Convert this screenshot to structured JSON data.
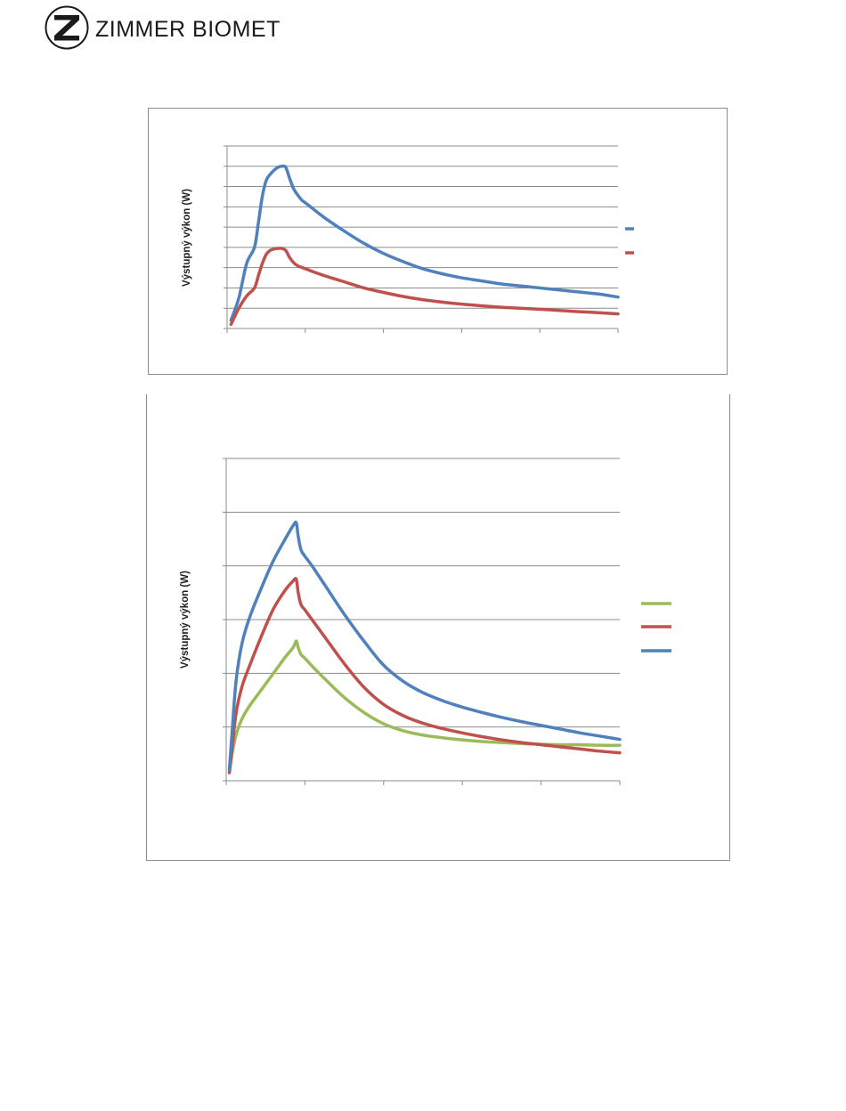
{
  "brand": {
    "name": "ZIMMER BIOMET"
  },
  "colors": {
    "blue": "#4f81bd",
    "red": "#c0504d",
    "green": "#9bbb59",
    "grid": "#8c8c8c"
  },
  "chart_data": [
    {
      "type": "line",
      "title": "",
      "xlabel": "",
      "ylabel": "Výstupný výkon (W)",
      "xlim": [
        0,
        100
      ],
      "ylim": [
        0,
        9
      ],
      "grid": true,
      "legend_position": "right",
      "series": [
        {
          "color": "#4f81bd",
          "x": [
            1,
            3,
            5,
            7,
            8,
            9,
            10,
            11,
            12,
            13,
            14,
            15,
            16,
            17,
            18,
            19,
            20,
            22,
            25,
            30,
            35,
            40,
            45,
            50,
            55,
            60,
            65,
            70,
            75,
            80,
            85,
            90,
            95,
            100
          ],
          "y": [
            0.4,
            1.5,
            3.2,
            4.0,
            5.2,
            6.5,
            7.3,
            7.6,
            7.8,
            7.95,
            8.0,
            7.95,
            7.4,
            6.9,
            6.6,
            6.35,
            6.2,
            5.9,
            5.45,
            4.8,
            4.2,
            3.7,
            3.3,
            2.95,
            2.7,
            2.5,
            2.35,
            2.2,
            2.1,
            2.0,
            1.9,
            1.8,
            1.7,
            1.55
          ]
        },
        {
          "color": "#c0504d",
          "x": [
            1,
            3,
            5,
            7,
            8,
            9,
            10,
            11,
            12,
            13,
            14,
            15,
            16,
            17,
            18,
            19,
            20,
            22,
            25,
            30,
            35,
            40,
            45,
            50,
            55,
            60,
            65,
            70,
            75,
            80,
            85,
            90,
            95,
            100
          ],
          "y": [
            0.2,
            1.0,
            1.6,
            2.0,
            2.6,
            3.2,
            3.65,
            3.85,
            3.92,
            3.95,
            3.95,
            3.85,
            3.5,
            3.25,
            3.1,
            3.02,
            2.95,
            2.8,
            2.6,
            2.3,
            2.0,
            1.78,
            1.58,
            1.42,
            1.3,
            1.2,
            1.12,
            1.05,
            1.0,
            0.95,
            0.89,
            0.83,
            0.78,
            0.72
          ]
        }
      ]
    },
    {
      "type": "line",
      "title": "",
      "xlabel": "",
      "ylabel": "Výstupný výkon (W)",
      "xlim": [
        0,
        100
      ],
      "ylim": [
        0,
        6
      ],
      "grid": true,
      "legend_position": "right",
      "series": [
        {
          "color": "#9bbb59",
          "x": [
            0.8,
            1.5,
            2.5,
            4,
            6,
            9,
            12,
            15,
            17,
            17.8,
            18.3,
            19,
            20,
            22,
            25,
            30,
            35,
            40,
            45,
            50,
            55,
            60,
            65,
            70,
            75,
            80,
            85,
            90,
            95,
            100
          ],
          "y": [
            0.15,
            0.5,
            0.85,
            1.15,
            1.4,
            1.7,
            2.0,
            2.3,
            2.48,
            2.6,
            2.48,
            2.35,
            2.28,
            2.12,
            1.9,
            1.55,
            1.27,
            1.06,
            0.93,
            0.85,
            0.8,
            0.76,
            0.73,
            0.71,
            0.69,
            0.68,
            0.67,
            0.67,
            0.66,
            0.66
          ]
        },
        {
          "color": "#c0504d",
          "x": [
            0.8,
            1.5,
            2.5,
            4,
            6,
            9,
            12,
            15,
            17,
            17.8,
            18.3,
            19,
            20,
            22,
            25,
            30,
            35,
            40,
            45,
            50,
            55,
            60,
            65,
            70,
            75,
            80,
            85,
            90,
            95,
            100
          ],
          "y": [
            0.15,
            0.6,
            1.25,
            1.75,
            2.15,
            2.7,
            3.2,
            3.55,
            3.72,
            3.75,
            3.5,
            3.28,
            3.18,
            2.98,
            2.68,
            2.18,
            1.74,
            1.42,
            1.21,
            1.07,
            0.97,
            0.89,
            0.82,
            0.76,
            0.71,
            0.67,
            0.63,
            0.59,
            0.55,
            0.52
          ]
        },
        {
          "color": "#4f81bd",
          "x": [
            0.8,
            1.5,
            2.5,
            4,
            6,
            9,
            12,
            15,
            17,
            17.8,
            18.3,
            19,
            20,
            22,
            25,
            30,
            35,
            40,
            45,
            50,
            55,
            60,
            65,
            70,
            75,
            80,
            85,
            90,
            95,
            100
          ],
          "y": [
            0.2,
            0.9,
            1.85,
            2.55,
            3.05,
            3.6,
            4.1,
            4.5,
            4.75,
            4.8,
            4.55,
            4.3,
            4.18,
            3.98,
            3.65,
            3.1,
            2.6,
            2.15,
            1.85,
            1.64,
            1.49,
            1.37,
            1.27,
            1.18,
            1.1,
            1.03,
            0.96,
            0.89,
            0.83,
            0.77
          ]
        }
      ]
    }
  ]
}
